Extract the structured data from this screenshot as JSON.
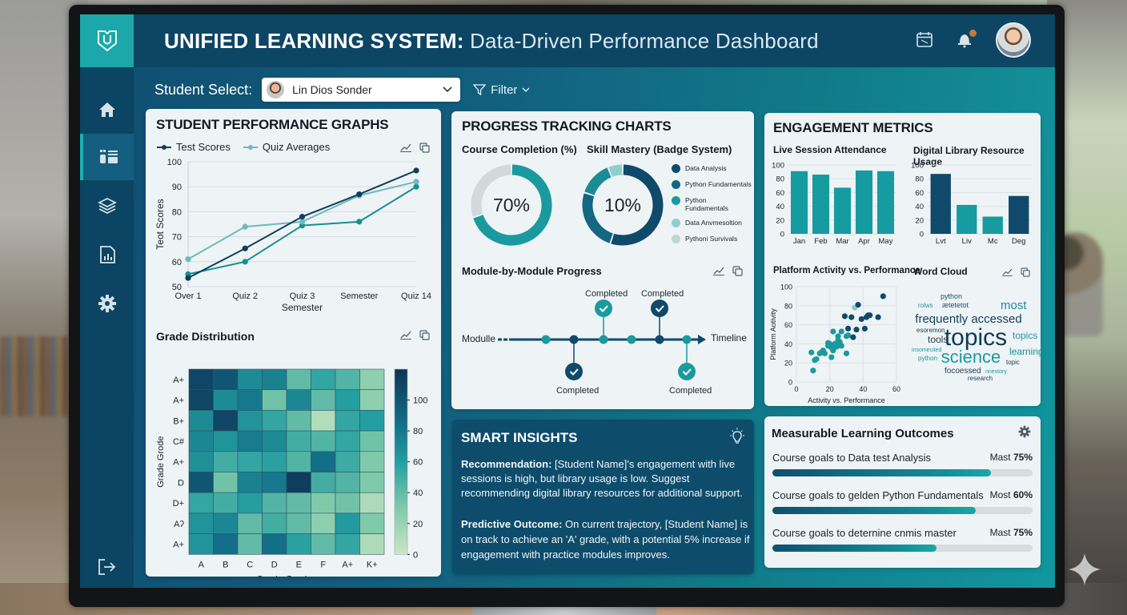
{
  "app": {
    "title_bold": "UNIFIED LEARNING SYSTEM:",
    "title_sub": " Data-Driven Performance Dashboard",
    "logo_letter": "U"
  },
  "header_icons": [
    "calendar-icon",
    "bell-icon",
    "user-avatar"
  ],
  "sidebar": {
    "items": [
      {
        "name": "home",
        "icon": "home-icon",
        "active": false
      },
      {
        "name": "dashboard",
        "icon": "dashboard-list-icon",
        "active": true
      },
      {
        "name": "courses",
        "icon": "layers-icon",
        "active": false
      },
      {
        "name": "reports",
        "icon": "report-chart-icon",
        "active": false
      },
      {
        "name": "settings",
        "icon": "gear-icon",
        "active": false
      },
      {
        "name": "logout",
        "icon": "logout-icon",
        "active": false
      }
    ]
  },
  "filter_bar": {
    "label": "Student Select:",
    "selected_student": "Lin Dios Sonder",
    "filter_label": "Filter"
  },
  "student_performance": {
    "title": "STUDENT PERFORMANCE GRAPHS",
    "legend": [
      "Test Scores",
      "Quiz Averages"
    ],
    "grade_distribution_title": "Grade Distribution"
  },
  "progress": {
    "title": "PROGRESS TRACKING CHARTS",
    "course_completion_title": "Course Completion (%)",
    "course_completion_value": "70%",
    "skill_mastery_title": "Skill Mastery (Badge System)",
    "skill_mastery_value": "10%",
    "skill_legend": [
      {
        "label": "Data Analysis",
        "color": "#0f4a6a"
      },
      {
        "label": "Python Fundamentals",
        "color": "#146683"
      },
      {
        "label": "Python Fundamentals",
        "color": "#1a9a9e"
      },
      {
        "label": "Data Anvmesoltion",
        "color": "#8fcfcb"
      },
      {
        "label": "Pythoni Survivals",
        "color": "#bfd6d4"
      }
    ],
    "module_title": "Module-by-Module Progress",
    "module_axis_label": "Modulle",
    "timeline_label": "Timeline",
    "milestone_label": "Completed"
  },
  "engagement": {
    "title": "ENGAGEMENT METRICS",
    "attendance_title": "Live Session Attendance",
    "library_title": "Digital Library Resource Usage",
    "scatter_title": "Platform Activity vs. Performance",
    "scatter_xlabel": "Activity vs. Performance",
    "scatter_ylabel": "Platform Aotivity",
    "word_cloud_title": "Word Cloud",
    "words": [
      {
        "text": "python",
        "size": 9,
        "color": "#1e4f68"
      },
      {
        "text": "rolws",
        "size": 8,
        "color": "#2a93a0"
      },
      {
        "text": "ætetetot",
        "size": 9,
        "color": "#1e4f68"
      },
      {
        "text": "most",
        "size": 15,
        "color": "#1a8f98"
      },
      {
        "text": "frequently accessed",
        "size": 15,
        "color": "#0f3f5a"
      },
      {
        "text": "esoremon",
        "size": 8,
        "color": "#1e3d50"
      },
      {
        "text": "topics",
        "size": 30,
        "color": "#0f3a55"
      },
      {
        "text": "topics",
        "size": 12,
        "color": "#1a9aa0"
      },
      {
        "text": "tools",
        "size": 12,
        "color": "#1e3d50"
      },
      {
        "text": "insomecited",
        "size": 7,
        "color": "#1a9aa0"
      },
      {
        "text": "learning",
        "size": 12,
        "color": "#1a8f98"
      },
      {
        "text": "python",
        "size": 8,
        "color": "#1a9aa0"
      },
      {
        "text": "science",
        "size": 22,
        "color": "#1a9aa0"
      },
      {
        "text": "topic",
        "size": 8,
        "color": "#1e3d50"
      },
      {
        "text": "focoessed",
        "size": 10,
        "color": "#1e3d50"
      },
      {
        "text": "nnestory",
        "size": 7,
        "color": "#1a9aa0"
      },
      {
        "text": "research",
        "size": 8,
        "color": "#1e3d50"
      }
    ]
  },
  "insights": {
    "title": "SMART INSIGHTS",
    "recommendation_label": "Recommendation:",
    "recommendation_text": " [Student Name]'s engagement with live sessions is high, but library usage is low. Suggest recommending digital library resources for additional support.",
    "predictive_label": "Predictive Outcome:",
    "predictive_text": " On current trajectory, [Student Name] is on track to achieve an 'A' grade, with a potential 5% increase if engagement with practice modules improves."
  },
  "outcomes": {
    "title": "Measurable Learning Outcomes",
    "goals": [
      {
        "label": "Course goals to Data test Analysis",
        "prefix": "Mast ",
        "value": "75%",
        "fill": 84
      },
      {
        "label": "Course goals to gelden Python Fundamentals",
        "prefix": "Most ",
        "value": "60%",
        "fill": 78
      },
      {
        "label": "Course goals to deternine cnmis master",
        "prefix": "Mast ",
        "value": "75%",
        "fill": 63
      }
    ]
  },
  "chart_data": [
    {
      "type": "line",
      "title": "STUDENT PERFORMANCE GRAPHS",
      "categories": [
        "Over 1",
        "Quiz 2",
        "Quiz 3",
        "Semester",
        "Quiz 14"
      ],
      "series": [
        {
          "name": "Test Scores",
          "color": "#0f3f5a",
          "values": [
            53.5,
            65.3,
            78,
            87,
            96.5
          ]
        },
        {
          "name": "Quiz Averages",
          "color": "#6fb9bc",
          "values": [
            61,
            74,
            76,
            86.5,
            92
          ]
        },
        {
          "name": "Quiz Averages (teal)",
          "color": "#158f95",
          "values": [
            55,
            60,
            74.5,
            76,
            90
          ]
        }
      ],
      "xlabel": "Semester",
      "ylabel": "Teot Scores",
      "ylim": [
        50,
        100
      ],
      "yticks": [
        50,
        60,
        70,
        80,
        90,
        100
      ],
      "grid": true,
      "legend_position": "top-left"
    },
    {
      "type": "heatmap",
      "title": "Grade Distribution",
      "x_labels": [
        "A",
        "B",
        "C",
        "D",
        "E",
        "F",
        "A+",
        "K+"
      ],
      "y_labels": [
        "A+",
        "A+",
        "B+",
        "C#",
        "A+",
        "D",
        "D+",
        "Aʔ",
        "A+"
      ],
      "values": [
        [
          110,
          100,
          70,
          75,
          40,
          55,
          45,
          25
        ],
        [
          110,
          70,
          80,
          35,
          72,
          40,
          60,
          25
        ],
        [
          70,
          110,
          65,
          55,
          40,
          10,
          55,
          60
        ],
        [
          72,
          65,
          78,
          70,
          50,
          45,
          55,
          35
        ],
        [
          68,
          50,
          55,
          58,
          45,
          85,
          52,
          30
        ],
        [
          100,
          35,
          75,
          80,
          115,
          50,
          45,
          30
        ],
        [
          55,
          50,
          60,
          45,
          40,
          30,
          35,
          12
        ],
        [
          65,
          72,
          40,
          50,
          40,
          25,
          62,
          30
        ],
        [
          65,
          85,
          40,
          85,
          58,
          40,
          55,
          12
        ]
      ],
      "xlabel": "Grade Grades",
      "ylabel": "Grade Grode",
      "colorbar_ticks": [
        0,
        20,
        40,
        60,
        80,
        100
      ],
      "colorbar_range": [
        0,
        120
      ]
    },
    {
      "type": "pie",
      "title": "Course Completion (%)",
      "labels": [
        "Completed",
        "Remaining"
      ],
      "values": [
        70,
        30
      ],
      "center_label": "70%"
    },
    {
      "type": "pie",
      "title": "Skill Mastery (Badge System)",
      "labels": [
        "Data Analysis",
        "Python Fundamentals",
        "Python Fundamentals",
        "Data Anvmesoltion"
      ],
      "values": [
        55,
        25,
        14,
        6
      ],
      "center_label": "10%"
    },
    {
      "type": "bar",
      "title": "Live Session Attendance",
      "categories": [
        "Jan",
        "Feb",
        "Mar",
        "Apr",
        "May"
      ],
      "values": [
        91,
        86,
        67,
        92,
        91
      ],
      "ylim": [
        0,
        100
      ],
      "yticks": [
        0,
        20,
        40,
        60,
        80,
        100
      ],
      "color": "#169ba0"
    },
    {
      "type": "bar",
      "title": "Digital Library Resource Usage",
      "categories": [
        "Lvt",
        "Liv",
        "Mc",
        "Deg"
      ],
      "values": [
        87,
        42,
        25,
        55
      ],
      "colors": [
        "#0f4a6a",
        "#169ba0",
        "#169ba0",
        "#0f4a6a"
      ],
      "ylim": [
        0,
        100
      ],
      "yticks": [
        0,
        20,
        40,
        60,
        80,
        100
      ]
    },
    {
      "type": "scatter",
      "title": "Platform Activity vs. Performance",
      "xlabel": "Activity vs. Performance",
      "ylabel": "Platform Aotivity",
      "xlim": [
        0,
        60
      ],
      "ylim": [
        0,
        100
      ],
      "xticks": [
        0,
        20,
        40,
        60
      ],
      "yticks": [
        0,
        20,
        40,
        60,
        80,
        100
      ],
      "points": [
        [
          10,
          12
        ],
        [
          9,
          31
        ],
        [
          11,
          23
        ],
        [
          12,
          24
        ],
        [
          14,
          30
        ],
        [
          15,
          31
        ],
        [
          16,
          33
        ],
        [
          17,
          30
        ],
        [
          19,
          38
        ],
        [
          19,
          41
        ],
        [
          20,
          40
        ],
        [
          21,
          26
        ],
        [
          21,
          36
        ],
        [
          22,
          33
        ],
        [
          22,
          53
        ],
        [
          23,
          40
        ],
        [
          24,
          37
        ],
        [
          25,
          38
        ],
        [
          25,
          44
        ],
        [
          25,
          48
        ],
        [
          26,
          42
        ],
        [
          27,
          53
        ],
        [
          27,
          38
        ],
        [
          29,
          69
        ],
        [
          30,
          48
        ],
        [
          30,
          30
        ],
        [
          31,
          56
        ],
        [
          31,
          49
        ],
        [
          33,
          68
        ],
        [
          34,
          47
        ],
        [
          35,
          78
        ],
        [
          36,
          55
        ],
        [
          37,
          81
        ],
        [
          39,
          66
        ],
        [
          41,
          56
        ],
        [
          42,
          68
        ],
        [
          43,
          70
        ],
        [
          44,
          70
        ],
        [
          49,
          68
        ],
        [
          52,
          90
        ]
      ]
    },
    {
      "type": "bar",
      "title": "Measurable Learning Outcomes",
      "categories": [
        "Course goals to Data test Analysis",
        "Course goals to gelden Python Fundamentals",
        "Course goals to deternine cnmis master"
      ],
      "values": [
        75,
        60,
        75
      ]
    }
  ]
}
